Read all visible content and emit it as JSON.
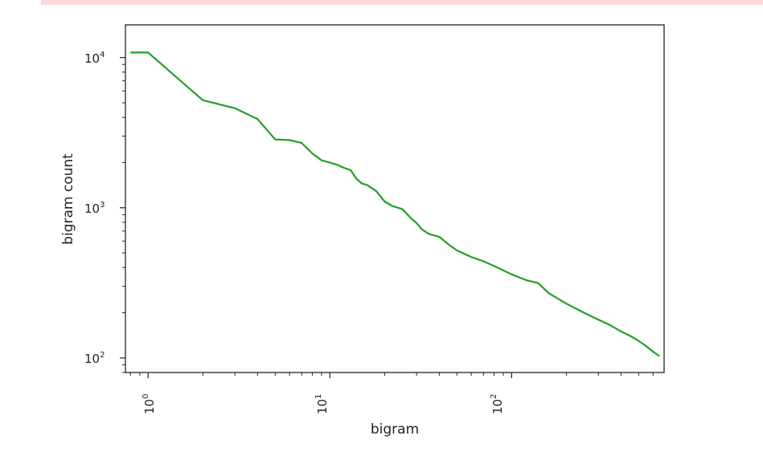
{
  "chart_data": {
    "type": "line",
    "title": "",
    "xlabel": "bigram",
    "ylabel": "bigram count",
    "xscale": "log",
    "yscale": "log",
    "xlim": [
      0.75,
      690
    ],
    "ylim": [
      80,
      16500
    ],
    "x_ticks": [
      {
        "base": "10",
        "exp": "0"
      },
      {
        "base": "10",
        "exp": "1"
      },
      {
        "base": "10",
        "exp": "2"
      }
    ],
    "y_ticks": [
      {
        "base": "10",
        "exp": "2"
      },
      {
        "base": "10",
        "exp": "3"
      },
      {
        "base": "10",
        "exp": "4"
      }
    ],
    "grid": false,
    "line_color": "#22a022",
    "series": [
      {
        "x": [
          0.8,
          1,
          2,
          3,
          4,
          5,
          6,
          7,
          8,
          9,
          10,
          11,
          12,
          13,
          14,
          15,
          16,
          18,
          20,
          22,
          25,
          28,
          30,
          32,
          35,
          40,
          45,
          50,
          60,
          70,
          80,
          100,
          120,
          140,
          160,
          200,
          250,
          300,
          350,
          400,
          450,
          500,
          550,
          600,
          650
        ],
        "y": [
          10800,
          10800,
          5200,
          4600,
          3900,
          2850,
          2820,
          2700,
          2300,
          2070,
          2000,
          1930,
          1840,
          1780,
          1560,
          1450,
          1420,
          1290,
          1100,
          1030,
          980,
          850,
          790,
          720,
          670,
          640,
          570,
          520,
          470,
          440,
          410,
          360,
          330,
          315,
          270,
          230,
          200,
          180,
          165,
          150,
          140,
          130,
          120,
          110,
          103
        ]
      }
    ]
  }
}
